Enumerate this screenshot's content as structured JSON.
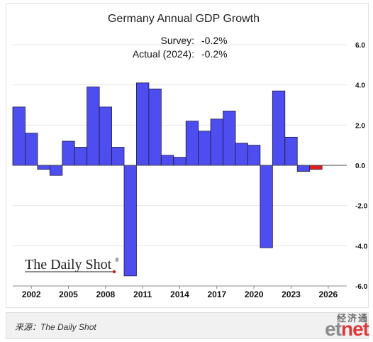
{
  "chart_data": {
    "type": "bar",
    "title": "Germany Annual GDP Growth",
    "annotations": [
      {
        "label": "Survey:",
        "value": "-0.2%"
      },
      {
        "label": "Actual (2024):",
        "value": "-0.2%"
      }
    ],
    "x": [
      2001,
      2002,
      2003,
      2004,
      2005,
      2006,
      2007,
      2008,
      2009,
      2010,
      2011,
      2012,
      2013,
      2014,
      2015,
      2016,
      2017,
      2018,
      2019,
      2020,
      2021,
      2022,
      2023,
      2024
    ],
    "values": [
      2.9,
      1.6,
      -0.2,
      -0.5,
      1.2,
      0.9,
      3.9,
      2.9,
      0.9,
      -5.5,
      4.1,
      3.8,
      0.5,
      0.4,
      2.2,
      1.7,
      2.3,
      2.7,
      1.1,
      1.0,
      -4.1,
      3.7,
      1.4,
      -0.3
    ],
    "highlight": {
      "x": 2025,
      "value": -0.2,
      "color": "#e0201a"
    },
    "xticks": [
      "2002",
      "2005",
      "2008",
      "2011",
      "2014",
      "2017",
      "2020",
      "2023",
      "2026"
    ],
    "yticks": [
      "6.0",
      "4.0",
      "2.0",
      "0.0",
      "-2.0",
      "-4.0",
      "-6.0"
    ],
    "ylim": [
      -6,
      6
    ],
    "xlim": [
      2000.5,
      2027.5
    ],
    "bar_color": "#4e4ef0",
    "bar_edge": "#1a1a40",
    "grid": true,
    "y_axis_side": "right"
  },
  "logo_text": "The Daily Shot",
  "logo_mark": "®",
  "source": "来源：The Daily Shot",
  "brand": {
    "cn": "经济通",
    "et": "et",
    "net": "net"
  }
}
